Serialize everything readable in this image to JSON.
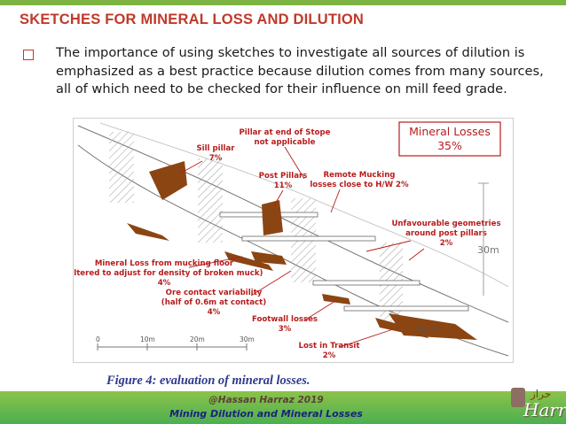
{
  "slide": {
    "title": "SKETCHES FOR MINERAL LOSS AND DILUTION",
    "bullet": "The importance of using sketches to investigate all sources of dilution is emphasized as a best practice because dilution comes from many sources, all of which need to be checked for their influence on mill feed grade."
  },
  "figure": {
    "summary_title": "Mineral Losses",
    "summary_value": "35%",
    "labels": {
      "sill_pillar": [
        "Sill pillar",
        "7%"
      ],
      "pillar_end": [
        "Pillar at end of Stope",
        "not applicable"
      ],
      "post_pillars": [
        "Post Pillars",
        "11%"
      ],
      "remote_mucking": [
        "Remote Mucking",
        "losses close to H/W 2%"
      ],
      "unfavourable": [
        "Unfavourable geometries",
        "around post pillars",
        "2%"
      ],
      "mucking_floor": [
        "Mineral Loss from mucking floor",
        "(altered to adjust for density of broken muck)",
        "4%"
      ],
      "ore_contact": [
        "Ore contact variability",
        "(half of 0.6m at contact)",
        "4%"
      ],
      "footwall": [
        "Footwall losses",
        "3%"
      ],
      "transit": [
        "Lost in Transit",
        "2%"
      ]
    },
    "height_label": "30m",
    "bench_label": "Bench",
    "scale_ticks": [
      "0",
      "10m",
      "20m",
      "30m"
    ]
  },
  "caption": "Figure 4: evaluation of mineral losses.",
  "footer": {
    "author": "@Hassan Harraz 2019",
    "course": "Mining Dilution and Mineral Losses"
  },
  "brand": {
    "name": "Harraz",
    "arabic": "حراز"
  },
  "colors": {
    "title": "#c0392b",
    "ore_loss": "#8b4513",
    "footer_green": "#6ab04c",
    "caption": "#2e3a8c"
  }
}
